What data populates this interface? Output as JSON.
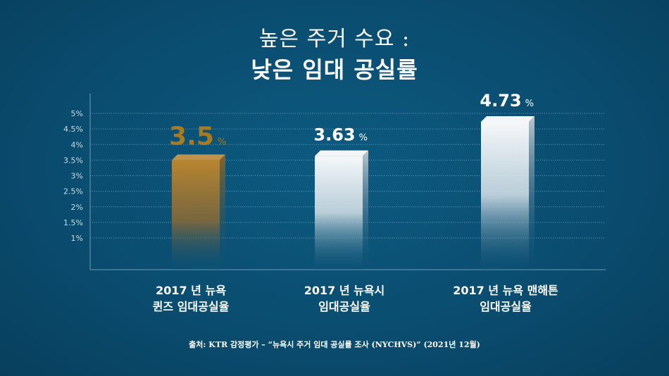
{
  "title_line1": "높은 주거 수요 :",
  "title_line2": "낮은 임대 공실률",
  "chart_data": {
    "type": "bar",
    "ylim": [
      0,
      5
    ],
    "y_ticks": [
      "1%",
      "1.5%",
      "2%",
      "2.5%",
      "3%",
      "3.5%",
      "4%",
      "4.5%",
      "5%"
    ],
    "y_tick_values": [
      1,
      1.5,
      2,
      2.5,
      3,
      3.5,
      4,
      4.5,
      5
    ],
    "grid": true,
    "categories": [
      {
        "line1": "2017 년 뉴욕",
        "line2": "퀸즈 임대공실율"
      },
      {
        "line1": "2017 년 뉴욕시",
        "line2": "임대공실율"
      },
      {
        "line1": "2017 년 뉴욕 맨해튼",
        "line2": "임대공실율"
      }
    ],
    "values": [
      3.5,
      3.63,
      4.73
    ],
    "value_labels": [
      "3.5",
      "3.63",
      "4.73"
    ],
    "unit": "%",
    "bar_colors": [
      "#b07d2a",
      "#f2f6f8",
      "#f2f6f8"
    ],
    "label_colors": [
      "#a87a22",
      "#ffffff",
      "#ffffff"
    ]
  },
  "source": "출처: KTR 감정평가 – “뉴욕시 주거 임대 공실률 조사 (NYCHVS)” (2021년 12월)"
}
